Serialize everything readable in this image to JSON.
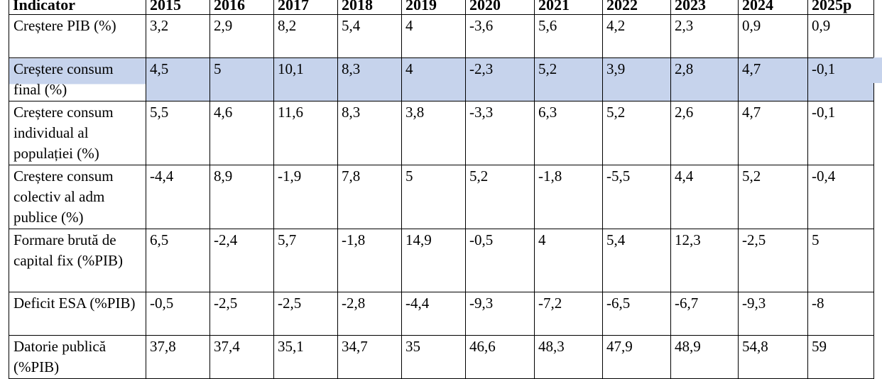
{
  "table": {
    "headers": [
      "Indicator",
      "2015",
      "2016",
      "2017",
      "2018",
      "2019",
      "2020",
      "2021",
      "2022",
      "2023",
      "2024",
      "2025p"
    ],
    "rows": [
      {
        "label": "Creștere PIB (%)",
        "values": [
          "3,2",
          "2,9",
          "8,2",
          "5,4",
          "4",
          "-3,6",
          "5,6",
          "4,2",
          "2,3",
          "0,9",
          "0,9"
        ]
      },
      {
        "label": "Creștere consum final (%)",
        "values": [
          "4,5",
          "5",
          "10,1",
          "8,3",
          "4",
          "-2,3",
          "5,2",
          "3,9",
          "2,8",
          "4,7",
          "-0,1"
        ],
        "highlighted": true,
        "highlight_color": "#c6d3ec"
      },
      {
        "label": "Creștere consum individual al populației (%)",
        "values": [
          "5,5",
          "4,6",
          "11,6",
          "8,3",
          "3,8",
          "-3,3",
          "6,3",
          "5,2",
          "2,6",
          "4,7",
          "-0,1"
        ]
      },
      {
        "label": "Creștere consum colectiv al adm publice (%)",
        "values": [
          "-4,4",
          "8,9",
          "-1,9",
          "7,8",
          "5",
          "5,2",
          "-1,8",
          "-5,5",
          "4,4",
          "5,2",
          "-0,4"
        ]
      },
      {
        "label": "Formare brută de capital fix (%PIB)",
        "values": [
          "6,5",
          "-2,4",
          "5,7",
          "-1,8",
          "14,9",
          "-0,5",
          "4",
          "5,4",
          "12,3",
          "-2,5",
          "5"
        ]
      },
      {
        "label": "Deficit ESA (%PIB)",
        "values": [
          "-0,5",
          "-2,5",
          "-2,5",
          "-2,8",
          "-4,4",
          "-9,3",
          "-7,2",
          "-6,5",
          "-6,7",
          "-9,3",
          "-8"
        ]
      },
      {
        "label": "Datorie publică (%PIB)",
        "values": [
          "37,8",
          "37,4",
          "35,1",
          "34,7",
          "35",
          "46,6",
          "48,3",
          "47,9",
          "48,9",
          "54,8",
          "59"
        ]
      }
    ]
  }
}
